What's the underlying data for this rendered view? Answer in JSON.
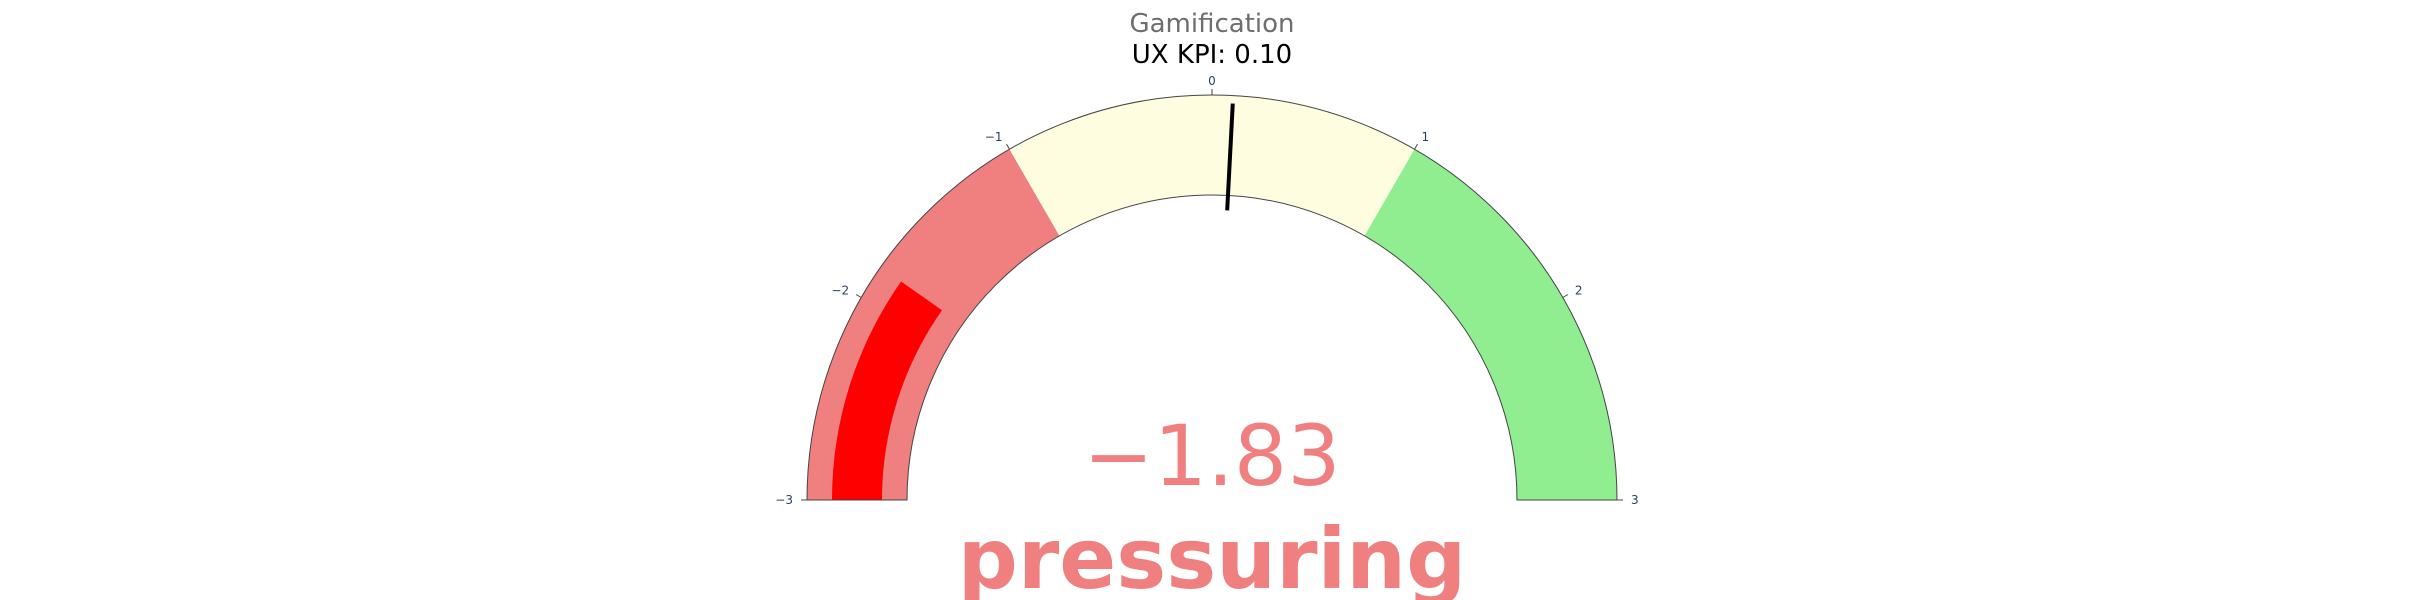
{
  "chart_data": {
    "type": "gauge",
    "title": "Gamification",
    "subtitle": "UX KPI: 0.10",
    "value": -1.83,
    "value_label": "−1.83",
    "value_suffix": "pressuring",
    "range": [
      -3,
      3
    ],
    "threshold": 0.1,
    "ticks": [
      -3,
      -2,
      -1,
      0,
      1,
      2,
      3
    ],
    "tick_labels": [
      "−3",
      "−2",
      "−1",
      "0",
      "1",
      "2",
      "3"
    ],
    "steps": [
      {
        "range": [
          -3,
          -1
        ],
        "color": "#f08080"
      },
      {
        "range": [
          -1,
          1
        ],
        "color": "#fffde0"
      },
      {
        "range": [
          1,
          3
        ],
        "color": "#90ee90"
      }
    ],
    "bar_color": "#ff0000",
    "threshold_color": "#000000",
    "value_color": "#f08080"
  }
}
